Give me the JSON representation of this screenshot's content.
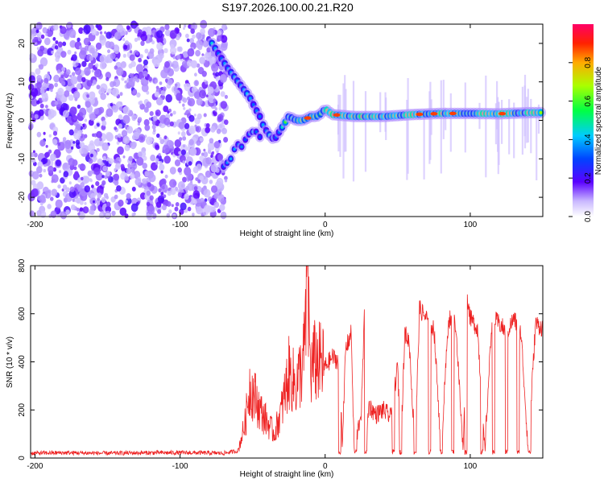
{
  "figure": {
    "title": "S197.2026.100.00.21.R20",
    "colors": {
      "snr_line": "#ee2222",
      "frame": "#000000",
      "bg": "#ffffff"
    }
  },
  "chart_data": [
    {
      "type": "heatmap",
      "name": "spectrogram",
      "xlabel": "Height of straight line (km)",
      "ylabel": "Frequency (Hz)",
      "xlim": [
        -203,
        150
      ],
      "ylim": [
        -25,
        25
      ],
      "xticks": [
        -200,
        -100,
        0,
        100
      ],
      "xtick_labels": [
        "-200",
        "-100",
        "0",
        "100"
      ],
      "yticks": [
        -20,
        -10,
        0,
        10,
        20
      ],
      "ytick_labels": [
        "-20",
        "-10",
        "0",
        "10",
        "20"
      ],
      "noise_region_x": [
        -203,
        -68
      ],
      "signal_ridge": {
        "x": [
          -78,
          -68,
          -64,
          -60,
          -56,
          -52,
          -48,
          -45,
          -42,
          -38,
          -35,
          -30,
          -25,
          -20,
          -15,
          -10,
          -6,
          -2,
          0,
          5,
          20,
          40,
          60,
          80,
          100,
          120,
          140,
          150
        ],
        "y": [
          20,
          14,
          12,
          10,
          8,
          6,
          3,
          1,
          -2,
          -4,
          -5,
          -2,
          1,
          0,
          0,
          1,
          1,
          2,
          3,
          1.5,
          1.0,
          1.0,
          1.5,
          1.8,
          1.8,
          1.7,
          2.0,
          2.0
        ]
      },
      "secondary_ridge": {
        "x": [
          -70,
          -65,
          -61,
          -57,
          -54,
          -50,
          -47,
          -44
        ],
        "y": [
          -12,
          -10,
          -6,
          -7,
          -4,
          -3,
          -3,
          -5
        ]
      },
      "colorbar": {
        "label": "Normalized spectral amplitude",
        "range": [
          0.0,
          1.0
        ],
        "ticks": [
          0.0,
          0.2,
          0.4,
          0.6,
          0.8
        ],
        "tick_labels": [
          "0.0",
          "0.2",
          "0.4",
          "0.6",
          "0.8"
        ],
        "colormap": "rainbow"
      }
    },
    {
      "type": "line",
      "name": "snr",
      "xlabel": "Height of straight line (km)",
      "ylabel": "SNR (10 * v/v)",
      "xlim": [
        -203,
        150
      ],
      "ylim": [
        0,
        800
      ],
      "xticks": [
        -200,
        -100,
        0,
        100
      ],
      "xtick_labels": [
        "-200",
        "-100",
        "0",
        "100"
      ],
      "yticks": [
        0,
        200,
        400,
        600,
        800
      ],
      "ytick_labels": [
        "0",
        "200",
        "400",
        "600",
        "800"
      ],
      "series": [
        {
          "name": "SNR",
          "x": [
            -203,
            -180,
            -150,
            -120,
            -90,
            -70,
            -60,
            -55,
            -52,
            -48,
            -45,
            -40,
            -35,
            -30,
            -25,
            -20,
            -15,
            -12,
            -10,
            -8,
            -5,
            0,
            5,
            10,
            12,
            14,
            18,
            20,
            25,
            27,
            28,
            30,
            35,
            40,
            45,
            50,
            52,
            55,
            58,
            62,
            65,
            70,
            75,
            80,
            85,
            90,
            95,
            98,
            100,
            105,
            110,
            115,
            120,
            125,
            130,
            135,
            140,
            145,
            150
          ],
          "y": [
            20,
            22,
            20,
            22,
            22,
            20,
            30,
            150,
            300,
            250,
            200,
            150,
            100,
            200,
            350,
            300,
            400,
            700,
            350,
            400,
            400,
            380,
            420,
            400,
            40,
            450,
            520,
            30,
            200,
            580,
            30,
            220,
            180,
            200,
            170,
            380,
            30,
            520,
            480,
            30,
            620,
            580,
            540,
            30,
            580,
            560,
            30,
            680,
            580,
            540,
            30,
            580,
            560,
            520,
            580,
            520,
            30,
            560,
            540
          ]
        }
      ],
      "dropouts_x": [
        10,
        21,
        28,
        47,
        52,
        62,
        72,
        80,
        88,
        97,
        108,
        116,
        125,
        133,
        141
      ]
    }
  ]
}
